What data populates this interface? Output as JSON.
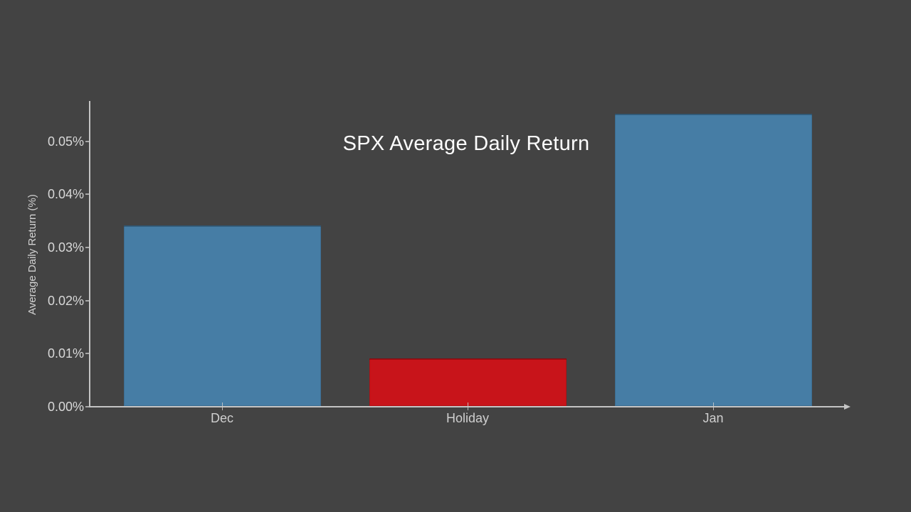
{
  "chart_data": {
    "type": "bar",
    "title": "SPX Average Daily Return",
    "ylabel": "Average Daily Return (%)",
    "xlabel": "",
    "categories": [
      "Dec",
      "Holiday",
      "Jan"
    ],
    "values": [
      0.034,
      0.009,
      0.055
    ],
    "value_unit": "%",
    "ylim": [
      0,
      0.0576
    ],
    "yticks": [
      0,
      0.01,
      0.02,
      0.03,
      0.04,
      0.05
    ],
    "ytick_labels": [
      "0.00%",
      "0.01%",
      "0.02%",
      "0.03%",
      "0.04%",
      "0.05%"
    ],
    "bar_colors": [
      "#467da5",
      "#c8141a",
      "#467da5"
    ],
    "grid": false,
    "legend": null,
    "layout_hint": "single plot, axis lines light gray on dark slide background, no gridlines",
    "colors": {
      "background": "#434343",
      "axis": "#c4c4c4",
      "tick_mark": "#a8a8a8",
      "ytick_label": "#d8d8d8",
      "xtick_label": "#cfcfcf",
      "title": "#fdfdfd",
      "bar_blue": "#467da5",
      "bar_red": "#c8141a"
    }
  }
}
